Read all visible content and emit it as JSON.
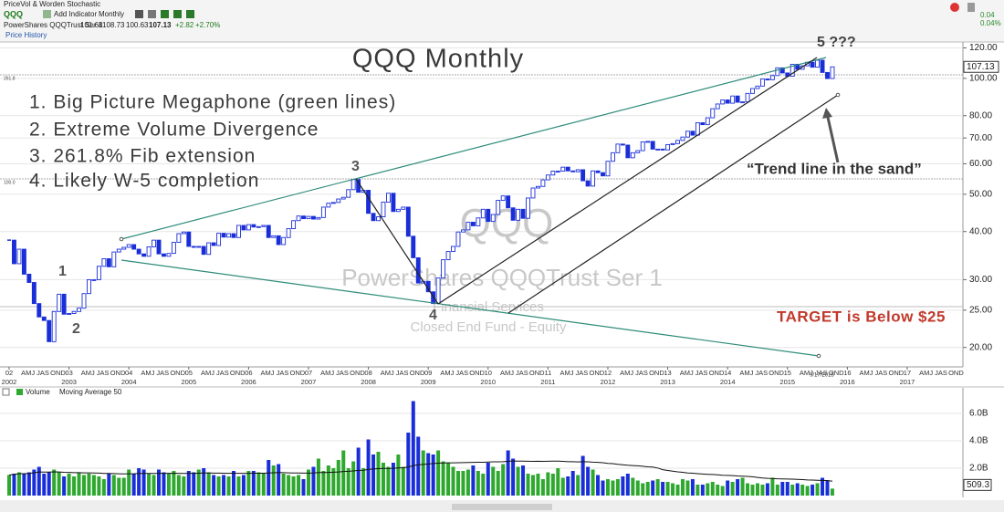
{
  "toolbar": {
    "title": "PriceVol & Worden Stochastic",
    "symbol": "QQQ",
    "add_indicator": "Add Indicator",
    "period": "Monthly"
  },
  "quote": {
    "name": "PowerShares QQQTrust Ser 1",
    "open": 101.68,
    "high": 108.73,
    "low": 100.63,
    "close": 107.13,
    "change": "+2.82",
    "change_pct": "+2.70%"
  },
  "panel_label": "Price History",
  "top_right": [
    "0.04",
    "0.04%"
  ],
  "chart_data": [
    {
      "type": "candlestick",
      "title": "QQQ Monthly",
      "notes": [
        "1. Big Picture Megaphone (green lines)",
        "2. Extreme Volume Divergence",
        "3. 261.8% Fib extension",
        "4. Likely W-5 completion"
      ],
      "wave_labels": [
        "1",
        "2",
        "3",
        "4",
        "5 ???"
      ],
      "callout": "“Trend line in the sand”",
      "target": "TARGET is Below $25",
      "watermark": [
        "QQQ",
        "PowerShares QQQTrust Ser 1",
        "Financial Services",
        "Closed End Fund - Equity"
      ],
      "fib_labels": [
        "261.8",
        "100.0"
      ],
      "date_label": "9/17/2015",
      "color": "#1a2ed8",
      "log_scale": true,
      "grid": true,
      "values": [
        38,
        33,
        36,
        31,
        29.5,
        26,
        24,
        23.5,
        20.7,
        24.8,
        27.5,
        24.4,
        24.5,
        24.8,
        25.3,
        27.6,
        30,
        30,
        32.5,
        34,
        32.4,
        35.4,
        36,
        36.4,
        37,
        36,
        35,
        34.5,
        36.5,
        38,
        35,
        34.5,
        35.1,
        37.5,
        39.5,
        39.9,
        36.6,
        36.5,
        36.6,
        34.9,
        37.4,
        36.8,
        39.6,
        38.7,
        39.5,
        38.6,
        41.5,
        40.4,
        41.7,
        41.1,
        41.2,
        41.5,
        38.6,
        39,
        37,
        38.6,
        40.7,
        42.7,
        43.9,
        43.2,
        43.8,
        43.1,
        43.5,
        46.3,
        47.4,
        47.6,
        48.6,
        49.1,
        51.4,
        54.6,
        50.6,
        51.2,
        44.6,
        42.7,
        43.7,
        47.7,
        50.3,
        45.1,
        45.7,
        46.3,
        38.9,
        34.2,
        29.4,
        29.7,
        27.9,
        26,
        30.3,
        33.8,
        35.5,
        36.6,
        39.9,
        40.4,
        42.3,
        41.4,
        43.4,
        45.7,
        42.5,
        44.3,
        48.2,
        49.5,
        46.1,
        42.8,
        45.7,
        43.3,
        48.9,
        51.9,
        52.4,
        54.5,
        56.1,
        57.4,
        57.4,
        58.8,
        57.5,
        57.2,
        57.9,
        54.2,
        52.5,
        57.5,
        56.9,
        55.8,
        60.9,
        64.1,
        67.5,
        67.1,
        62.2,
        64.1,
        64.9,
        68.4,
        68.6,
        65.5,
        65.5,
        65.2,
        67.3,
        67.7,
        69,
        70.4,
        72.9,
        71.2,
        76.7,
        75.8,
        79,
        83.4,
        85.8,
        87.9,
        86.2,
        90,
        86.7,
        86.9,
        91.4,
        94.1,
        95.5,
        99.6,
        99.2,
        101.7,
        106.5,
        103.3,
        101.3,
        108.8,
        105.6,
        107.8,
        110.1,
        106.9,
        111.5,
        103.6,
        99.9,
        107.13
      ],
      "ylim": [
        18,
        125
      ],
      "yticks": [
        {
          "value": 20,
          "label": "20.00"
        },
        {
          "value": 25,
          "label": "25.00"
        },
        {
          "value": 30,
          "label": "30.00"
        },
        {
          "value": 40,
          "label": "40.00"
        },
        {
          "value": 50,
          "label": "50.00"
        },
        {
          "value": 60,
          "label": "60.00"
        },
        {
          "value": 70,
          "label": "70.00"
        },
        {
          "value": 80,
          "label": "80.00"
        },
        {
          "value": 100,
          "label": "100.00"
        },
        {
          "value": 120,
          "label": "120.00"
        }
      ],
      "xlim": [
        2002,
        2017.9
      ],
      "xticks": [
        2002,
        2003,
        2004,
        2005,
        2006,
        2007,
        2008,
        2009,
        2010,
        2011,
        2012,
        2013,
        2014,
        2015,
        2016,
        2017
      ],
      "xticks_short": [
        "02",
        "03",
        "04",
        "05",
        "06",
        "07",
        "08",
        "09",
        "10",
        "11",
        "12",
        "13",
        "14",
        "15",
        "16",
        "17"
      ],
      "quarter_labels": [
        "AMJ",
        "JAS",
        "OND"
      ]
    },
    {
      "type": "bar",
      "title": "Volume",
      "indicator": "Moving Average 50",
      "ma_period": 50,
      "up_color": "#2fa82f",
      "down_color": "#1a2ed8",
      "ma_color": "#111111",
      "values": [
        1.5,
        1.6,
        1.7,
        1.6,
        1.7,
        1.9,
        2.1,
        1.6,
        1.7,
        1.9,
        1.7,
        1.4,
        1.6,
        1.4,
        1.7,
        1.5,
        1.6,
        1.5,
        1.4,
        1.2,
        1.6,
        1.5,
        1.3,
        1.3,
        1.9,
        1.6,
        2.0,
        1.9,
        1.6,
        1.5,
        1.9,
        1.7,
        1.6,
        1.8,
        1.5,
        1.4,
        1.8,
        1.7,
        1.9,
        2.0,
        1.7,
        1.5,
        1.4,
        1.5,
        1.4,
        1.8,
        1.4,
        1.5,
        1.8,
        1.8,
        1.7,
        1.6,
        2.6,
        2.2,
        2.3,
        1.6,
        1.5,
        1.4,
        1.5,
        1.2,
        1.9,
        2.1,
        2.7,
        1.8,
        2.2,
        2.0,
        2.6,
        3.3,
        2.0,
        2.5,
        3.5,
        2.0,
        4.1,
        3.0,
        3.2,
        2.4,
        2.1,
        2.4,
        3.0,
        2.1,
        4.6,
        6.9,
        4.3,
        3.3,
        3.1,
        3.0,
        3.3,
        2.5,
        2.4,
        2.1,
        1.8,
        1.8,
        1.9,
        2.2,
        1.8,
        1.6,
        2.4,
        2.1,
        1.8,
        2.3,
        3.3,
        2.7,
        2.1,
        2.2,
        1.6,
        1.5,
        1.6,
        1.2,
        1.7,
        1.6,
        2.0,
        1.3,
        1.4,
        1.8,
        1.5,
        2.9,
        2.1,
        1.9,
        1.5,
        1.1,
        1.2,
        1.1,
        1.2,
        1.4,
        1.6,
        1.3,
        1.1,
        0.9,
        1.0,
        1.1,
        1.2,
        1.0,
        1.0,
        0.9,
        0.8,
        1.2,
        1.1,
        1.2,
        0.8,
        0.8,
        0.9,
        1.0,
        0.8,
        0.7,
        1.1,
        1.0,
        1.2,
        1.3,
        0.9,
        0.8,
        0.9,
        0.8,
        0.9,
        1.3,
        0.8,
        1.0,
        1.0,
        0.8,
        0.9,
        0.8,
        0.7,
        0.8,
        0.9,
        1.3,
        1.1,
        0.5093
      ],
      "last_label": "509.3",
      "ylim": [
        0,
        7.8
      ],
      "yticks": [
        {
          "value": 2,
          "label": "2.0B"
        },
        {
          "value": 4,
          "label": "4.0B"
        },
        {
          "value": 6,
          "label": "6.0B"
        }
      ]
    }
  ]
}
